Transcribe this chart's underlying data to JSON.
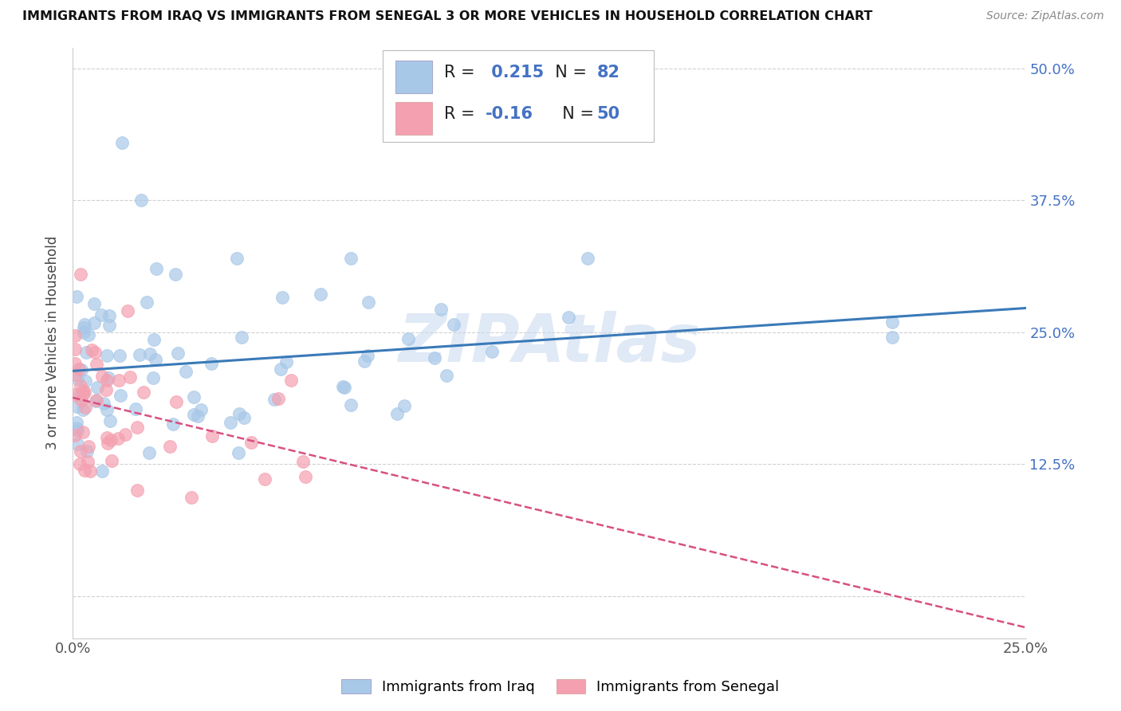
{
  "title": "IMMIGRANTS FROM IRAQ VS IMMIGRANTS FROM SENEGAL 3 OR MORE VEHICLES IN HOUSEHOLD CORRELATION CHART",
  "source": "Source: ZipAtlas.com",
  "ylabel_left": "3 or more Vehicles in Household",
  "xlim": [
    0.0,
    0.25
  ],
  "ylim": [
    -0.04,
    0.52
  ],
  "iraq_R": 0.215,
  "iraq_N": 82,
  "senegal_R": -0.16,
  "senegal_N": 50,
  "iraq_color": "#a8c8e8",
  "senegal_color": "#f4a0b0",
  "iraq_line_color": "#3a7ab8",
  "senegal_line_color": "#d85080",
  "watermark": "ZIPAtlas",
  "watermark_color": "#c8d8f0",
  "legend_label_iraq": "Immigrants from Iraq",
  "legend_label_senegal": "Immigrants from Senegal",
  "label_color": "#4472c4",
  "text_dark": "#333333"
}
